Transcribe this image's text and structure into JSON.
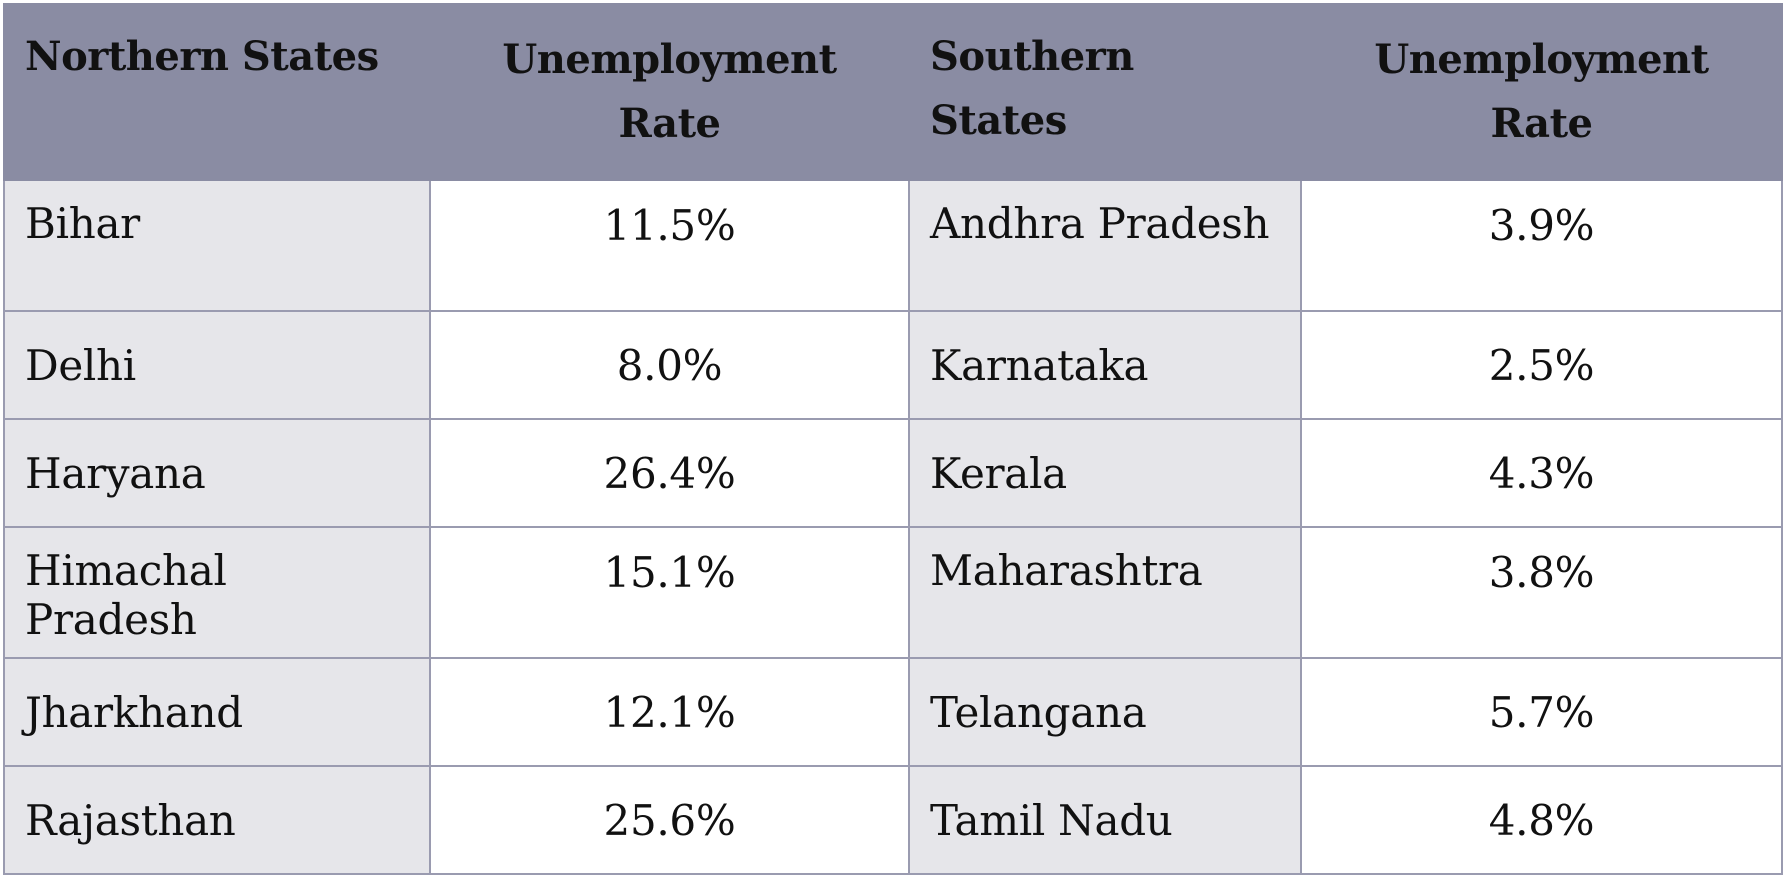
{
  "chart_data": {
    "type": "table",
    "columns": [
      "Northern States",
      "Unemployment Rate",
      "Southern States",
      "Unemployment Rate"
    ],
    "rows": [
      [
        "Bihar",
        "11.5%",
        "Andhra Pradesh",
        "3.9%"
      ],
      [
        "Delhi",
        "8.0%",
        "Karnataka",
        "2.5%"
      ],
      [
        "Haryana",
        "26.4%",
        "Kerala",
        "4.3%"
      ],
      [
        "Himachal Pradesh",
        "15.1%",
        "Maharashtra",
        "3.8%"
      ],
      [
        "Jharkhand",
        "12.1%",
        "Telangana",
        "5.7%"
      ],
      [
        "Rajasthan",
        "25.6%",
        "Tamil Nadu",
        "4.8%"
      ]
    ],
    "northern": {
      "states": [
        "Bihar",
        "Delhi",
        "Haryana",
        "Himachal Pradesh",
        "Jharkhand",
        "Rajasthan"
      ],
      "unemployment_rate": [
        11.5,
        8.0,
        26.4,
        15.1,
        12.1,
        25.6
      ]
    },
    "southern": {
      "states": [
        "Andhra Pradesh",
        "Karnataka",
        "Kerala",
        "Maharashtra",
        "Telangana",
        "Tamil Nadu"
      ],
      "unemployment_rate": [
        3.9,
        2.5,
        4.3,
        3.8,
        5.7,
        4.8
      ]
    }
  },
  "colors": {
    "header_bg": "#8a8ca3",
    "state_cell_bg": "#e6e6ea",
    "rate_cell_bg": "#ffffff",
    "border": "#9a9bb0"
  }
}
